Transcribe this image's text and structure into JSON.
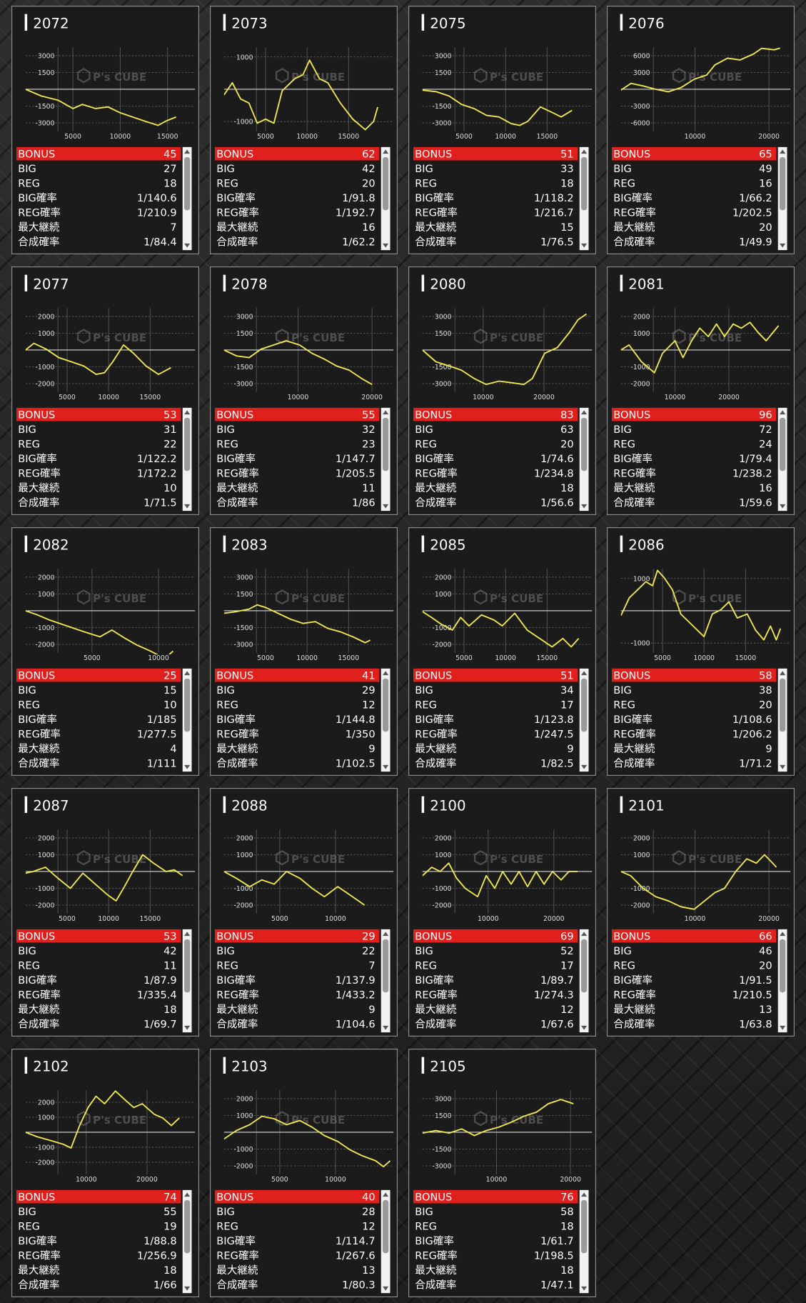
{
  "watermark": "P's CUBE",
  "stat_labels": [
    "BONUS",
    "BIG",
    "REG",
    "BIG確率",
    "REG確率",
    "最大継続",
    "合成確率"
  ],
  "tables": [
    [
      45,
      27,
      18,
      "1/140.6",
      "1/210.9",
      7,
      "1/84.4"
    ],
    [
      62,
      42,
      20,
      "1/91.8",
      "1/192.7",
      16,
      "1/62.2"
    ],
    [
      51,
      33,
      18,
      "1/118.2",
      "1/216.7",
      15,
      "1/76.5"
    ],
    [
      65,
      49,
      16,
      "1/66.2",
      "1/202.5",
      20,
      "1/49.9"
    ],
    [
      53,
      31,
      22,
      "1/122.2",
      "1/172.2",
      10,
      "1/71.5"
    ],
    [
      55,
      32,
      23,
      "1/147.7",
      "1/205.5",
      11,
      "1/86"
    ],
    [
      83,
      63,
      20,
      "1/74.6",
      "1/234.8",
      18,
      "1/56.6"
    ],
    [
      96,
      72,
      24,
      "1/79.4",
      "1/238.2",
      16,
      "1/59.6"
    ],
    [
      25,
      15,
      10,
      "1/185",
      "1/277.5",
      4,
      "1/111"
    ],
    [
      41,
      29,
      12,
      "1/144.8",
      "1/350",
      9,
      "1/102.5"
    ],
    [
      51,
      34,
      17,
      "1/123.8",
      "1/247.5",
      9,
      "1/82.5"
    ],
    [
      58,
      38,
      20,
      "1/108.6",
      "1/206.2",
      9,
      "1/71.2"
    ],
    [
      53,
      42,
      11,
      "1/87.9",
      "1/335.4",
      18,
      "1/69.7"
    ],
    [
      29,
      22,
      7,
      "1/137.9",
      "1/433.2",
      9,
      "1/104.6"
    ],
    [
      69,
      52,
      17,
      "1/89.7",
      "1/274.3",
      12,
      "1/67.6"
    ],
    [
      66,
      46,
      20,
      "1/91.5",
      "1/210.5",
      13,
      "1/63.8"
    ],
    [
      74,
      55,
      19,
      "1/88.8",
      "1/256.9",
      18,
      "1/66"
    ],
    [
      40,
      28,
      12,
      "1/114.7",
      "1/267.6",
      13,
      "1/80.3"
    ],
    [
      76,
      58,
      18,
      "1/61.7",
      "1/198.5",
      18,
      "1/47.1"
    ]
  ],
  "chart_data": [
    {
      "type": "line",
      "title": "2072",
      "color": "#f0e84a",
      "xlim": [
        0,
        17900
      ],
      "xticks": [
        5000,
        10000,
        15000
      ],
      "ylim": [
        -3750,
        3750
      ],
      "yticks": [
        -3000,
        -1500,
        1500,
        3000
      ],
      "x": [
        0,
        1670,
        3430,
        5000,
        6000,
        7400,
        8700,
        10000,
        11300,
        12600,
        14000,
        14800,
        15900
      ],
      "values": [
        0,
        -600,
        -975,
        -1725,
        -1350,
        -1725,
        -1575,
        -2100,
        -2475,
        -2850,
        -3225,
        -2850,
        -2475
      ]
    },
    {
      "type": "line",
      "title": "2073",
      "color": "#f0e84a",
      "xlim": [
        0,
        20400
      ],
      "xticks": [
        5000,
        10000,
        15000
      ],
      "ylim": [
        -1300,
        1300
      ],
      "yticks": [
        -1000,
        1000
      ],
      "x": [
        0,
        1000,
        2000,
        3000,
        4000,
        5000,
        6000,
        7000,
        8500,
        9500,
        10300,
        11500,
        12500,
        14000,
        15500,
        17000,
        18000,
        18500
      ],
      "values": [
        -175,
        200,
        -300,
        -425,
        -1050,
        -925,
        -1050,
        -50,
        325,
        450,
        900,
        325,
        200,
        -425,
        -925,
        -1250,
        -1000,
        -550
      ]
    },
    {
      "type": "line",
      "title": "2075",
      "color": "#f0e84a",
      "xlim": [
        0,
        20400
      ],
      "xticks": [
        5000,
        10000,
        15000
      ],
      "ylim": [
        -3750,
        3750
      ],
      "yticks": [
        -3000,
        -1500,
        1500,
        3000
      ],
      "x": [
        0,
        1700,
        3200,
        4700,
        6200,
        7700,
        9200,
        10700,
        11700,
        12700,
        14200,
        15700,
        16700,
        18000
      ],
      "values": [
        -75,
        -225,
        -600,
        -1350,
        -1725,
        -2325,
        -2475,
        -3075,
        -3225,
        -2850,
        -1575,
        -2100,
        -2475,
        -1875
      ]
    },
    {
      "type": "line",
      "title": "2076",
      "color": "#f0e84a",
      "xlim": [
        0,
        22900
      ],
      "xticks": [
        10000,
        20000
      ],
      "ylim": [
        -7500,
        7500
      ],
      "yticks": [
        -6000,
        -3000,
        3000,
        6000
      ],
      "x": [
        0,
        1350,
        3000,
        4700,
        6400,
        8100,
        9900,
        11600,
        12700,
        14400,
        16100,
        17900,
        19000,
        20700,
        21500
      ],
      "values": [
        -150,
        1050,
        600,
        0,
        -450,
        300,
        1800,
        2550,
        4350,
        5550,
        5250,
        6300,
        7300,
        7050,
        7350
      ]
    },
    {
      "type": "line",
      "title": "2077",
      "color": "#f0e84a",
      "xlim": [
        0,
        20400
      ],
      "xticks": [
        5000,
        10000,
        15000
      ],
      "ylim": [
        -2500,
        2500
      ],
      "yticks": [
        -2000,
        -1000,
        1000,
        2000
      ],
      "x": [
        0,
        1000,
        2500,
        4000,
        5500,
        7000,
        8500,
        9500,
        10500,
        11800,
        13000,
        14500,
        16000,
        17500
      ],
      "values": [
        0,
        400,
        50,
        -450,
        -700,
        -950,
        -1450,
        -1350,
        -700,
        300,
        -200,
        -950,
        -1450,
        -1050
      ]
    },
    {
      "type": "line",
      "title": "2078",
      "color": "#f0e84a",
      "xlim": [
        0,
        22900
      ],
      "xticks": [
        10000,
        20000
      ],
      "ylim": [
        -3750,
        3750
      ],
      "yticks": [
        -3000,
        -1500,
        1500,
        3000
      ],
      "x": [
        0,
        1700,
        3400,
        5000,
        6700,
        8400,
        10200,
        11900,
        13600,
        15200,
        16900,
        18600,
        20000
      ],
      "values": [
        0,
        -525,
        -675,
        75,
        450,
        825,
        450,
        -300,
        -825,
        -1425,
        -1800,
        -2550,
        -3075
      ]
    },
    {
      "type": "line",
      "title": "2080",
      "color": "#f0e84a",
      "xlim": [
        0,
        27900
      ],
      "xticks": [
        10000,
        20000
      ],
      "ylim": [
        -3750,
        3750
      ],
      "yticks": [
        -3000,
        -1500,
        1500,
        3000
      ],
      "x": [
        0,
        2200,
        4400,
        6400,
        8500,
        10500,
        12600,
        14700,
        16700,
        18100,
        20100,
        22200,
        24200,
        25600,
        27000
      ],
      "values": [
        0,
        -1050,
        -1425,
        -1800,
        -2550,
        -3075,
        -2775,
        -2925,
        -3075,
        -2550,
        -300,
        225,
        1575,
        2700,
        3225
      ]
    },
    {
      "type": "line",
      "title": "2081",
      "color": "#f0e84a",
      "xlim": [
        0,
        31400
      ],
      "xticks": [
        10000,
        20000
      ],
      "ylim": [
        -2500,
        2500
      ],
      "yticks": [
        -2000,
        -1000,
        1000,
        2000
      ],
      "x": [
        0,
        1500,
        3800,
        6200,
        7700,
        10000,
        11500,
        13100,
        14600,
        16200,
        17700,
        19200,
        20800,
        22300,
        23900,
        25400,
        26900,
        29200
      ],
      "values": [
        0,
        300,
        -700,
        -1350,
        -200,
        550,
        -450,
        550,
        1300,
        800,
        1550,
        800,
        1550,
        1300,
        1650,
        1050,
        550,
        1450
      ]
    },
    {
      "type": "line",
      "title": "2082",
      "color": "#f0e84a",
      "xlim": [
        0,
        12750
      ],
      "xticks": [
        5000,
        10000
      ],
      "ylim": [
        -2500,
        2500
      ],
      "yticks": [
        -2000,
        -1000,
        1000,
        2000
      ],
      "x": [
        0,
        900,
        1800,
        3100,
        4400,
        5600,
        6500,
        7500,
        8400,
        9400,
        10000,
        10600,
        11100
      ],
      "values": [
        0,
        -250,
        -550,
        -900,
        -1250,
        -1550,
        -1150,
        -1650,
        -2050,
        -2400,
        -2650,
        -2750,
        -2400
      ]
    },
    {
      "type": "line",
      "title": "2083",
      "color": "#f0e84a",
      "xlim": [
        0,
        20400
      ],
      "xticks": [
        5000,
        10000,
        15000
      ],
      "ylim": [
        -3750,
        3750
      ],
      "yticks": [
        -3000,
        -1500,
        1500,
        3000
      ],
      "x": [
        0,
        1500,
        3000,
        4000,
        5000,
        6500,
        8000,
        9500,
        11000,
        12500,
        14000,
        15500,
        17000,
        17600
      ],
      "values": [
        -225,
        -75,
        150,
        525,
        300,
        -225,
        -750,
        -1125,
        -975,
        -1575,
        -1875,
        -2325,
        -2850,
        -2625
      ]
    },
    {
      "type": "line",
      "title": "2085",
      "color": "#f0e84a",
      "xlim": [
        0,
        20400
      ],
      "xticks": [
        5000,
        10000,
        15000
      ],
      "ylim": [
        -2500,
        2500
      ],
      "yticks": [
        -2000,
        -1000,
        1000,
        2000
      ],
      "x": [
        0,
        1100,
        2100,
        3600,
        4600,
        5600,
        7100,
        8600,
        9600,
        11100,
        12600,
        14100,
        15600,
        16900,
        17900,
        18800
      ],
      "values": [
        -50,
        -400,
        -750,
        -1150,
        -400,
        -900,
        -250,
        -550,
        -900,
        -150,
        -1150,
        -1650,
        -2150,
        -1650,
        -2150,
        -1650
      ]
    },
    {
      "type": "line",
      "title": "2086",
      "color": "#f0e84a",
      "xlim": [
        0,
        20400
      ],
      "xticks": [
        5000,
        10000,
        15000
      ],
      "ylim": [
        -1300,
        1300
      ],
      "yticks": [
        -1000,
        1000
      ],
      "x": [
        0,
        1000,
        2000,
        3000,
        3800,
        4400,
        5200,
        6200,
        7200,
        8700,
        10000,
        11000,
        12000,
        13000,
        14000,
        15200,
        16200,
        17200,
        18000,
        18700,
        19200
      ],
      "values": [
        -150,
        400,
        650,
        900,
        775,
        1250,
        1025,
        650,
        -100,
        -475,
        -800,
        -100,
        25,
        275,
        -225,
        -100,
        -600,
        -900,
        -475,
        -900,
        -550
      ]
    },
    {
      "type": "line",
      "title": "2087",
      "color": "#f0e84a",
      "xlim": [
        0,
        20400
      ],
      "xticks": [
        5000,
        10000,
        15000
      ],
      "ylim": [
        -2500,
        2500
      ],
      "yticks": [
        -2000,
        -1000,
        1000,
        2000
      ],
      "x": [
        0,
        900,
        2400,
        3900,
        5400,
        6900,
        8400,
        9900,
        10900,
        11900,
        12900,
        14100,
        15400,
        16900,
        17900,
        18900
      ],
      "values": [
        -100,
        0,
        250,
        -400,
        -1000,
        -100,
        -750,
        -1400,
        -1750,
        -900,
        0,
        1000,
        500,
        0,
        100,
        -250
      ]
    },
    {
      "type": "line",
      "title": "2088",
      "color": "#f0e84a",
      "xlim": [
        0,
        15200
      ],
      "xticks": [
        5000,
        10000
      ],
      "ylim": [
        -2500,
        2500
      ],
      "yticks": [
        -2000,
        -1000,
        1000,
        2000
      ],
      "x": [
        0,
        1100,
        2300,
        3400,
        4500,
        5600,
        6800,
        7900,
        9000,
        10200,
        11300,
        12600
      ],
      "values": [
        0,
        -400,
        -900,
        -500,
        -750,
        0,
        -400,
        -1000,
        -1500,
        -900,
        -1400,
        -2000
      ]
    },
    {
      "type": "line",
      "title": "2100",
      "color": "#f0e84a",
      "xlim": [
        0,
        25800
      ],
      "xticks": [
        10000,
        20000
      ],
      "ylim": [
        -2500,
        2500
      ],
      "yticks": [
        -2000,
        -1000,
        1000,
        2000
      ],
      "x": [
        0,
        1400,
        2700,
        4000,
        5200,
        6500,
        8400,
        9700,
        11000,
        12200,
        13500,
        14700,
        16000,
        17300,
        18500,
        19800,
        21100,
        22300,
        23600
      ],
      "values": [
        -250,
        250,
        0,
        500,
        -400,
        -1000,
        -1500,
        -250,
        -1000,
        0,
        -750,
        0,
        -900,
        0,
        -750,
        0,
        -500,
        0,
        0
      ]
    },
    {
      "type": "line",
      "title": "2101",
      "color": "#f0e84a",
      "xlim": [
        0,
        22900
      ],
      "xticks": [
        10000,
        20000
      ],
      "ylim": [
        -2500,
        2500
      ],
      "yticks": [
        -2000,
        -1000,
        1000,
        2000
      ],
      "x": [
        0,
        1300,
        3000,
        4700,
        6400,
        8100,
        9900,
        11300,
        12700,
        14000,
        15500,
        17000,
        18300,
        19400,
        20500,
        21000
      ],
      "values": [
        0,
        -250,
        -1000,
        -1500,
        -1750,
        -2100,
        -2250,
        -1750,
        -1250,
        -1000,
        0,
        750,
        500,
        1000,
        500,
        250
      ]
    },
    {
      "type": "line",
      "title": "2102",
      "color": "#f0e84a",
      "xlim": [
        0,
        27900
      ],
      "xticks": [
        10000,
        20000
      ],
      "ylim": [
        -2800,
        2800
      ],
      "yticks": [
        -2000,
        -1000,
        1000,
        2000
      ],
      "x": [
        0,
        1900,
        4100,
        6200,
        7500,
        8900,
        10300,
        11600,
        13000,
        14800,
        16400,
        17800,
        19200,
        21200,
        22600,
        24000,
        25300
      ],
      "values": [
        0,
        -300,
        -550,
        -800,
        -1050,
        450,
        1650,
        2400,
        1900,
        2750,
        2150,
        1650,
        1900,
        1200,
        950,
        450,
        950
      ]
    },
    {
      "type": "line",
      "title": "2103",
      "color": "#f0e84a",
      "xlim": [
        0,
        15200
      ],
      "xticks": [
        5000,
        10000
      ],
      "ylim": [
        -2500,
        2500
      ],
      "yticks": [
        -2000,
        -1000,
        1000,
        2000
      ],
      "x": [
        0,
        1100,
        2300,
        3400,
        4500,
        5600,
        6800,
        7900,
        9000,
        10200,
        11300,
        12400,
        13600,
        14300,
        14900
      ],
      "values": [
        -400,
        100,
        450,
        950,
        800,
        450,
        700,
        300,
        -200,
        -550,
        -1050,
        -1400,
        -1700,
        -2050,
        -1700
      ]
    },
    {
      "type": "line",
      "title": "2105",
      "color": "#f0e84a",
      "xlim": [
        0,
        22900
      ],
      "xticks": [
        10000,
        20000
      ],
      "ylim": [
        -3750,
        3750
      ],
      "yticks": [
        -3000,
        -1500,
        1500,
        3000
      ],
      "x": [
        0,
        1800,
        3600,
        5300,
        7000,
        8600,
        10300,
        12000,
        13700,
        15400,
        17000,
        18700,
        20400
      ],
      "values": [
        -75,
        150,
        -75,
        300,
        -300,
        150,
        450,
        900,
        1425,
        1800,
        2550,
        2925,
        2550
      ]
    }
  ]
}
